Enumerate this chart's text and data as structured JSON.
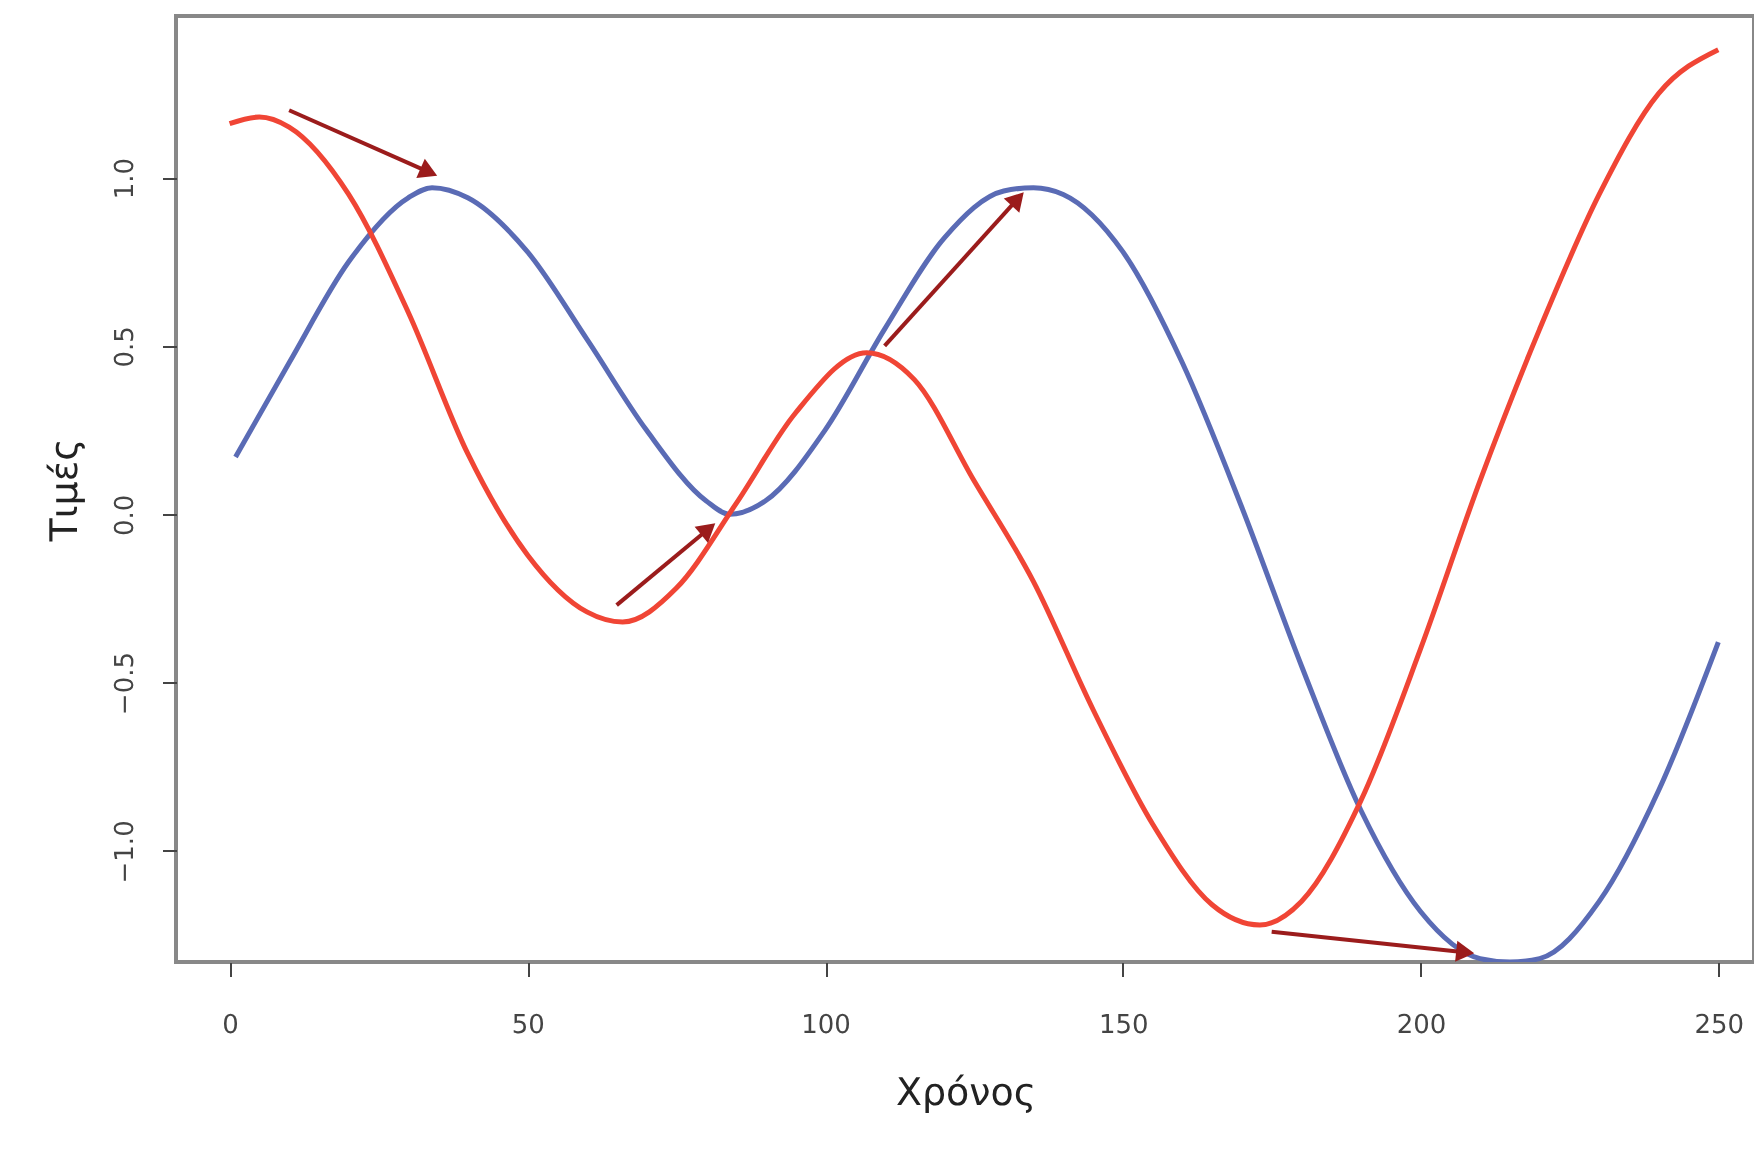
{
  "chart_data": {
    "type": "line",
    "xlabel": "Χρόνος",
    "ylabel": "Τιμές",
    "xlim": [
      -9,
      256
    ],
    "ylim": [
      -1.33,
      1.48
    ],
    "xticks": [
      0,
      50,
      100,
      150,
      200,
      250
    ],
    "yticks": [
      {
        "value": -1,
        "label": "−1.0"
      },
      {
        "value": -0.5,
        "label": "−0.5"
      },
      {
        "value": 0,
        "label": "0.0"
      },
      0.5,
      {
        "value": 1,
        "label": "1.0"
      }
    ],
    "grid": false,
    "line_style": "solid",
    "marker": "none",
    "series": [
      {
        "color": "#5a6bb5",
        "x": [
          1,
          10,
          20,
          30,
          34,
          40,
          50,
          60,
          70,
          80,
          84,
          90,
          100,
          110,
          120,
          130,
          135,
          140,
          150,
          160,
          170,
          180,
          190,
          200,
          210,
          215,
          220,
          230,
          240,
          250
        ],
        "values": [
          0.17,
          0.45,
          0.75,
          0.94,
          0.97,
          0.94,
          0.78,
          0.52,
          0.25,
          0.04,
          0.0,
          0.04,
          0.25,
          0.55,
          0.82,
          0.96,
          0.97,
          0.95,
          0.78,
          0.45,
          0.02,
          -0.45,
          -0.88,
          -1.18,
          -1.32,
          -1.33,
          -1.32,
          -1.15,
          -0.82,
          -0.38
        ]
      },
      {
        "color": "#f04535",
        "x": [
          0,
          5,
          10,
          20,
          30,
          40,
          50,
          60,
          66,
          75,
          85,
          95,
          107,
          115,
          125,
          135,
          145,
          155,
          165,
          173,
          180,
          190,
          200,
          210,
          220,
          230,
          240,
          250
        ],
        "values": [
          1.16,
          1.18,
          1.15,
          0.95,
          0.6,
          0.18,
          -0.12,
          -0.29,
          -0.32,
          -0.22,
          0.03,
          0.3,
          0.48,
          0.4,
          0.1,
          -0.2,
          -0.58,
          -0.92,
          -1.16,
          -1.22,
          -1.15,
          -0.85,
          -0.4,
          0.1,
          0.55,
          0.95,
          1.25,
          1.38
        ]
      }
    ]
  }
}
